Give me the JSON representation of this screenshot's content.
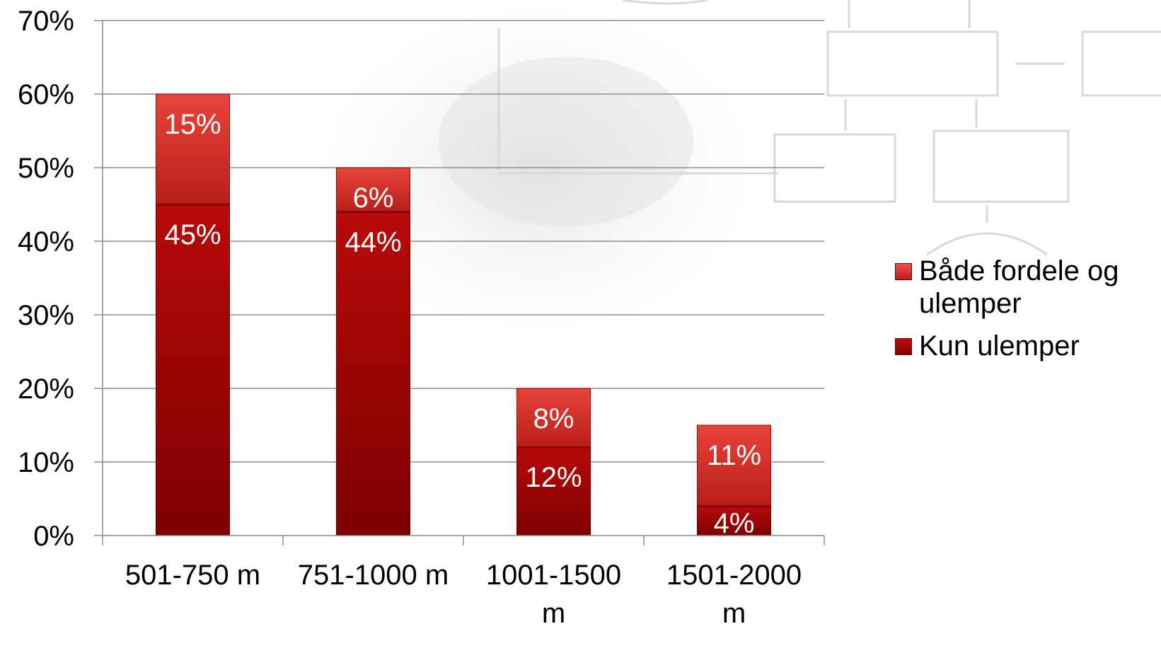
{
  "chart_data": {
    "type": "bar",
    "stacked": true,
    "categories": [
      "501-750 m",
      "751-1000 m",
      "1001-1500 m",
      "1501-2000 m"
    ],
    "series": [
      {
        "name": "Kun ulemper",
        "values": [
          45,
          44,
          12,
          4
        ],
        "labels": [
          "45%",
          "44%",
          "12%",
          "4%"
        ],
        "color": "#a80606"
      },
      {
        "name": "Både fordele og ulemper",
        "values": [
          15,
          6,
          8,
          11
        ],
        "labels": [
          "15%",
          "6%",
          "8%",
          "11%"
        ],
        "color": "#d42a22"
      }
    ],
    "yticks": [
      "0%",
      "10%",
      "20%",
      "30%",
      "40%",
      "50%",
      "60%",
      "70%"
    ],
    "ylim": [
      0,
      70
    ],
    "grid": true,
    "legend_position": "right"
  },
  "legend": {
    "items": [
      {
        "label": "Både fordele og ulemper",
        "color": "#e43a30"
      },
      {
        "label": "Kun ulemper",
        "color": "#a80606"
      }
    ]
  }
}
